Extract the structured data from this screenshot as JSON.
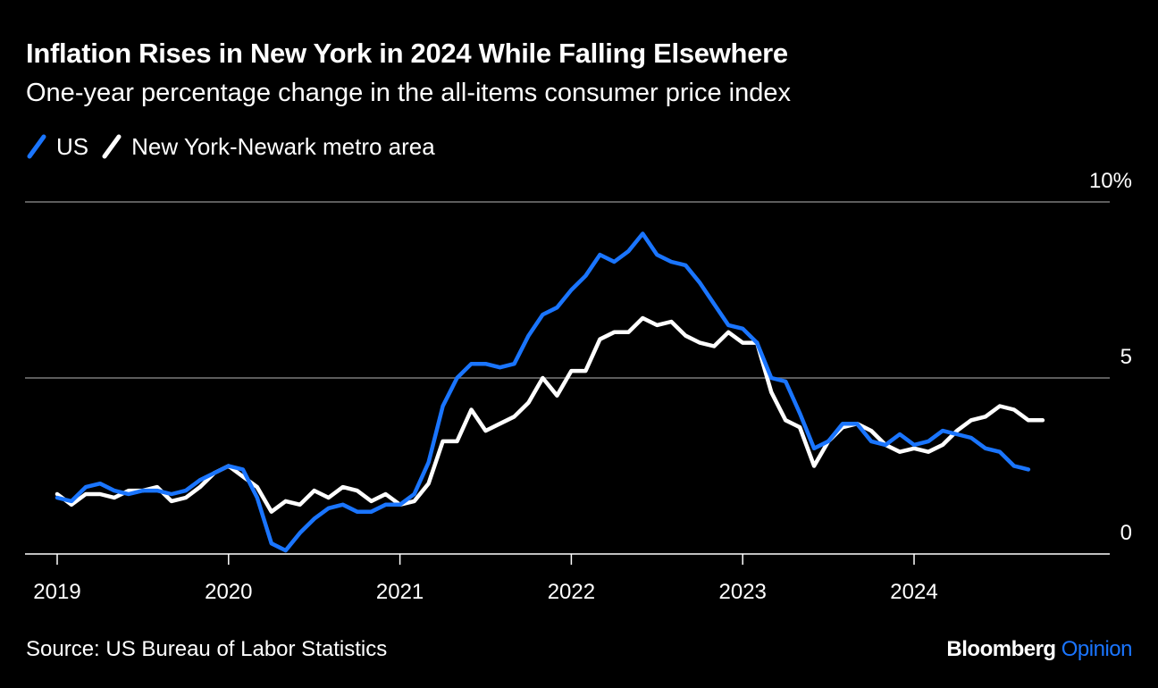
{
  "colors": {
    "background": "#000000",
    "text": "#ffffff",
    "us": "#1a75ff",
    "ny": "#ffffff",
    "grid": "#7a7a7a"
  },
  "header": {
    "title": "Inflation Rises in New York in 2024 While Falling Elsewhere",
    "subtitle": "One-year percentage change in the all-items consumer price index"
  },
  "footer": {
    "source": "Source: US Bureau of Labor Statistics",
    "brand_name": "Bloomberg",
    "brand_accent": "Opinion"
  },
  "chart_data": {
    "type": "line",
    "title": "Inflation Rises in New York in 2024 While Falling Elsewhere",
    "subtitle": "One-year percentage change in the all-items consumer price index",
    "x_start": "2019-01",
    "x_frequency": "monthly",
    "x_ticks": [
      "2019",
      "2020",
      "2021",
      "2022",
      "2023",
      "2024"
    ],
    "y_ticks": [
      {
        "value": 0,
        "label": "0"
      },
      {
        "value": 5,
        "label": "5"
      },
      {
        "value": 10,
        "label": "10%"
      }
    ],
    "ylim": [
      0,
      10
    ],
    "y_axis_side": "right",
    "grid": true,
    "legend_position": "top-left",
    "series": [
      {
        "name": "US",
        "color": "#1a75ff",
        "values": [
          1.6,
          1.5,
          1.9,
          2.0,
          1.8,
          1.7,
          1.8,
          1.8,
          1.7,
          1.8,
          2.1,
          2.3,
          2.5,
          2.4,
          1.6,
          0.3,
          0.1,
          0.6,
          1.0,
          1.3,
          1.4,
          1.2,
          1.2,
          1.4,
          1.4,
          1.7,
          2.6,
          4.2,
          5.0,
          5.4,
          5.4,
          5.3,
          5.4,
          6.2,
          6.8,
          7.0,
          7.5,
          7.9,
          8.5,
          8.3,
          8.6,
          9.1,
          8.5,
          8.3,
          8.2,
          7.7,
          7.1,
          6.5,
          6.4,
          6.0,
          5.0,
          4.9,
          4.0,
          3.0,
          3.2,
          3.7,
          3.7,
          3.2,
          3.1,
          3.4,
          3.1,
          3.2,
          3.5,
          3.4,
          3.3,
          3.0,
          2.9,
          2.5,
          2.4
        ]
      },
      {
        "name": "New York-Newark metro area",
        "color": "#ffffff",
        "values": [
          1.7,
          1.4,
          1.7,
          1.7,
          1.6,
          1.8,
          1.8,
          1.9,
          1.5,
          1.6,
          1.9,
          2.3,
          2.5,
          2.2,
          1.9,
          1.2,
          1.5,
          1.4,
          1.8,
          1.6,
          1.9,
          1.8,
          1.5,
          1.7,
          1.4,
          1.5,
          2.0,
          3.2,
          3.2,
          4.1,
          3.5,
          3.7,
          3.9,
          4.3,
          5.0,
          4.5,
          5.2,
          5.2,
          6.1,
          6.3,
          6.3,
          6.7,
          6.5,
          6.6,
          6.2,
          6.0,
          5.9,
          6.3,
          6.0,
          6.0,
          4.6,
          3.8,
          3.6,
          2.5,
          3.2,
          3.6,
          3.7,
          3.5,
          3.1,
          2.9,
          3.0,
          2.9,
          3.1,
          3.5,
          3.8,
          3.9,
          4.2,
          4.1,
          3.8,
          3.8
        ]
      }
    ]
  }
}
